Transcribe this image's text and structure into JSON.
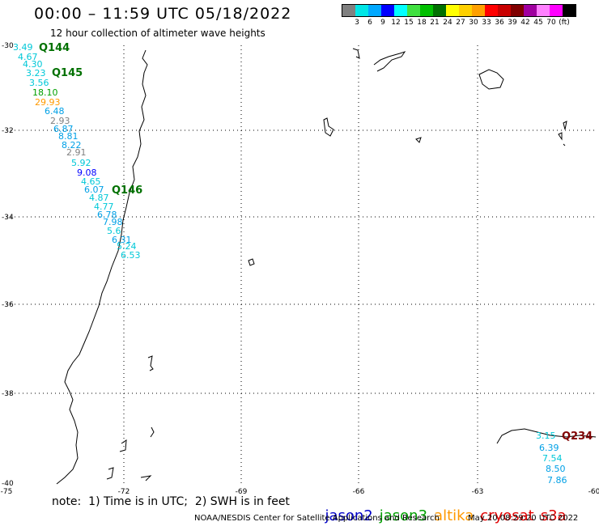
{
  "header": {
    "title": "00:00 – 11:59 UTC 05/18/2022",
    "subtitle": "12 hour collection of altimeter wave heights"
  },
  "legend": {
    "colors": [
      "#808080",
      "#00e6e6",
      "#00a8ff",
      "#0000ff",
      "#00ffff",
      "#40e040",
      "#00c000",
      "#007000",
      "#ffff00",
      "#ffd000",
      "#ffa000",
      "#ff0000",
      "#c80000",
      "#800000",
      "#a000a0",
      "#ff80ff",
      "#ff00ff",
      "#000000"
    ],
    "values": [
      "3",
      "6",
      "9",
      "12",
      "15",
      "18",
      "21",
      "24",
      "27",
      "30",
      "33",
      "36",
      "39",
      "42",
      "45",
      "70",
      "(ft)"
    ]
  },
  "axes": {
    "lat_ticks": [
      "-30",
      "-32",
      "-34",
      "-36",
      "-38",
      "-40"
    ],
    "lon_ticks": [
      "-75",
      "-72",
      "-69",
      "-66",
      "-63",
      "-60"
    ]
  },
  "passes": [
    "Q144",
    "Q145",
    "Q146",
    "Q234"
  ],
  "observations": {
    "values": [
      "3.49",
      "4.67",
      "4.30",
      "3.23",
      "3.56",
      "18.10",
      "29.93",
      "6.48",
      "2.93",
      "6.87",
      "8.81",
      "8.22",
      "2.91",
      "5.92",
      "9.08",
      "4.65",
      "6.07",
      "4.87",
      "4.77",
      "6.78",
      "7.98",
      "5.6",
      "6.31",
      "5.24",
      "6.53",
      "3.15",
      "6.39",
      "7.54",
      "8.50",
      "7.86"
    ],
    "colors": [
      "#00c8d8",
      "#00c8d8",
      "#00c8d8",
      "#00c8d8",
      "#00c8d8",
      "#00a000",
      "#ff9900",
      "#00a0e6",
      "#808080",
      "#00a0e6",
      "#00a0e6",
      "#00a0e6",
      "#808080",
      "#00c8d8",
      "#0000ff",
      "#00c8d8",
      "#00a0e6",
      "#00c8d8",
      "#00c8d8",
      "#00a0e6",
      "#00a0e6",
      "#00c8d8",
      "#00a0e6",
      "#00c8d8",
      "#00c8d8",
      "#00c8d8",
      "#00a0e6",
      "#00c8d8",
      "#00a0e6",
      "#00a0e6"
    ]
  },
  "footer": {
    "note": "note:  1) Time is in UTC;  2) SWH is in feet",
    "satellites": [
      "jason2",
      "jason3",
      "altika",
      "cryosat",
      "s3a"
    ],
    "satellite_colors": [
      "#0000c8",
      "#00a000",
      "#ff9900",
      "#e00000",
      "#e00000"
    ],
    "credit": "NOAA/NESDIS Center for Satellite Applications and Research",
    "timestamp": "May 20 08:29:20 UTC 2022"
  }
}
